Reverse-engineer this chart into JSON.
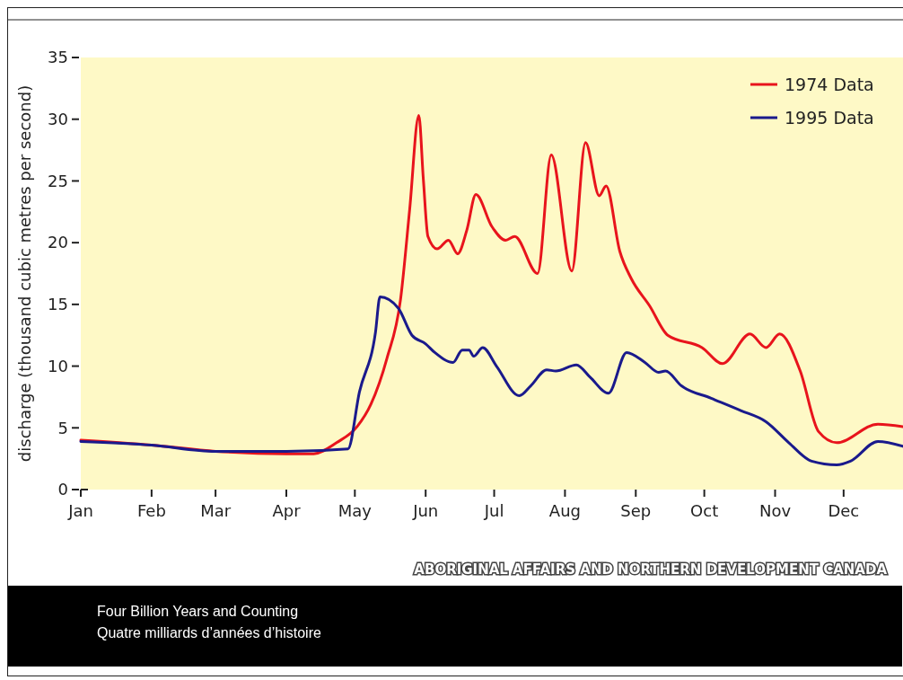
{
  "chart_data": {
    "type": "line",
    "ylabel": "discharge (thousand cubic metres per second)",
    "xlim": [
      "--01-01",
      "--12-27"
    ],
    "ylim": [
      0,
      35
    ],
    "yticks": [
      0,
      5,
      10,
      15,
      20,
      25,
      30,
      35
    ],
    "xticks": [
      {
        "value": "--01-01",
        "label": "Jan"
      },
      {
        "value": "--02-01",
        "label": "Feb"
      },
      {
        "value": "--03-01",
        "label": "Mar"
      },
      {
        "value": "--04-01",
        "label": "Apr"
      },
      {
        "value": "--05-01",
        "label": "May"
      },
      {
        "value": "--06-01",
        "label": "Jun"
      },
      {
        "value": "--07-01",
        "label": "Jul"
      },
      {
        "value": "--08-01",
        "label": "Aug"
      },
      {
        "value": "--09-01",
        "label": "Sep"
      },
      {
        "value": "--10-01",
        "label": "Oct"
      },
      {
        "value": "--11-01",
        "label": "Nov"
      },
      {
        "value": "--12-01",
        "label": "Dec"
      }
    ],
    "grid": false,
    "legend": "top right",
    "line_style": "solid",
    "marker": "none",
    "series": [
      {
        "name": "1974 Data",
        "color": "#e8141c",
        "x": [
          "--01-01",
          "--02-01",
          "--03-01",
          "--04-01",
          "--04-13",
          "--04-23",
          "--05-02",
          "--05-08",
          "--05-15",
          "--05-21",
          "--05-25",
          "--05-29",
          "--05-31",
          "--06-02",
          "--06-06",
          "--06-11",
          "--06-15",
          "--06-19",
          "--06-23",
          "--06-30",
          "--07-06",
          "--07-10",
          "--07-20",
          "--07-26",
          "--08-04",
          "--08-10",
          "--08-16",
          "--08-19",
          "--08-25",
          "--08-30",
          "--09-07",
          "--09-15",
          "--09-30",
          "--10-09",
          "--10-21",
          "--10-28",
          "--11-03",
          "--11-12",
          "--11-20",
          "--11-28",
          "--12-16",
          "--12-27"
        ],
        "values": [
          4.0,
          3.6,
          3.1,
          2.9,
          2.9,
          3.8,
          5.1,
          6.9,
          10.6,
          15.4,
          22.7,
          30.3,
          25.1,
          20.5,
          19.5,
          20.2,
          19.1,
          21.0,
          23.9,
          21.3,
          20.2,
          20.5,
          17.5,
          27.1,
          17.7,
          28.1,
          23.8,
          24.6,
          19.3,
          17.1,
          14.9,
          12.5,
          11.5,
          10.2,
          12.6,
          11.5,
          12.6,
          9.6,
          4.7,
          3.8,
          5.3,
          5.1
        ]
      },
      {
        "name": "1995 Data",
        "color": "#1a1a8c",
        "x": [
          "--01-01",
          "--02-01",
          "--03-01",
          "--04-01",
          "--04-28",
          "--05-03",
          "--05-10",
          "--05-12",
          "--05-20",
          "--05-26",
          "--06-01",
          "--06-05",
          "--06-13",
          "--06-17",
          "--06-20",
          "--06-22",
          "--06-26",
          "--07-02",
          "--07-12",
          "--07-17",
          "--07-24",
          "--07-28",
          "--08-06",
          "--08-12",
          "--08-20",
          "--08-28",
          "--09-05",
          "--09-11",
          "--09-14",
          "--09-21",
          "--10-04",
          "--10-17",
          "--10-28",
          "--11-07",
          "--11-17",
          "--11-28",
          "--12-04",
          "--12-16",
          "--12-27"
        ],
        "values": [
          3.9,
          3.6,
          3.1,
          3.1,
          3.3,
          7.9,
          12.7,
          15.6,
          14.7,
          12.5,
          11.8,
          11.1,
          10.3,
          11.3,
          11.3,
          10.8,
          11.5,
          10.0,
          7.6,
          8.4,
          9.7,
          9.6,
          10.1,
          9.1,
          7.8,
          11.1,
          10.3,
          9.5,
          9.6,
          8.4,
          7.4,
          6.4,
          5.5,
          3.8,
          2.3,
          2.0,
          2.3,
          3.9,
          3.5
        ]
      }
    ],
    "annotations": [
      "ABORIGINAL AFFAIRS AND NORTHERN DEVELOPMENT CANADA",
      "Four Billion Years and Counting",
      "Quatre milliards d’années d’histoire"
    ]
  }
}
